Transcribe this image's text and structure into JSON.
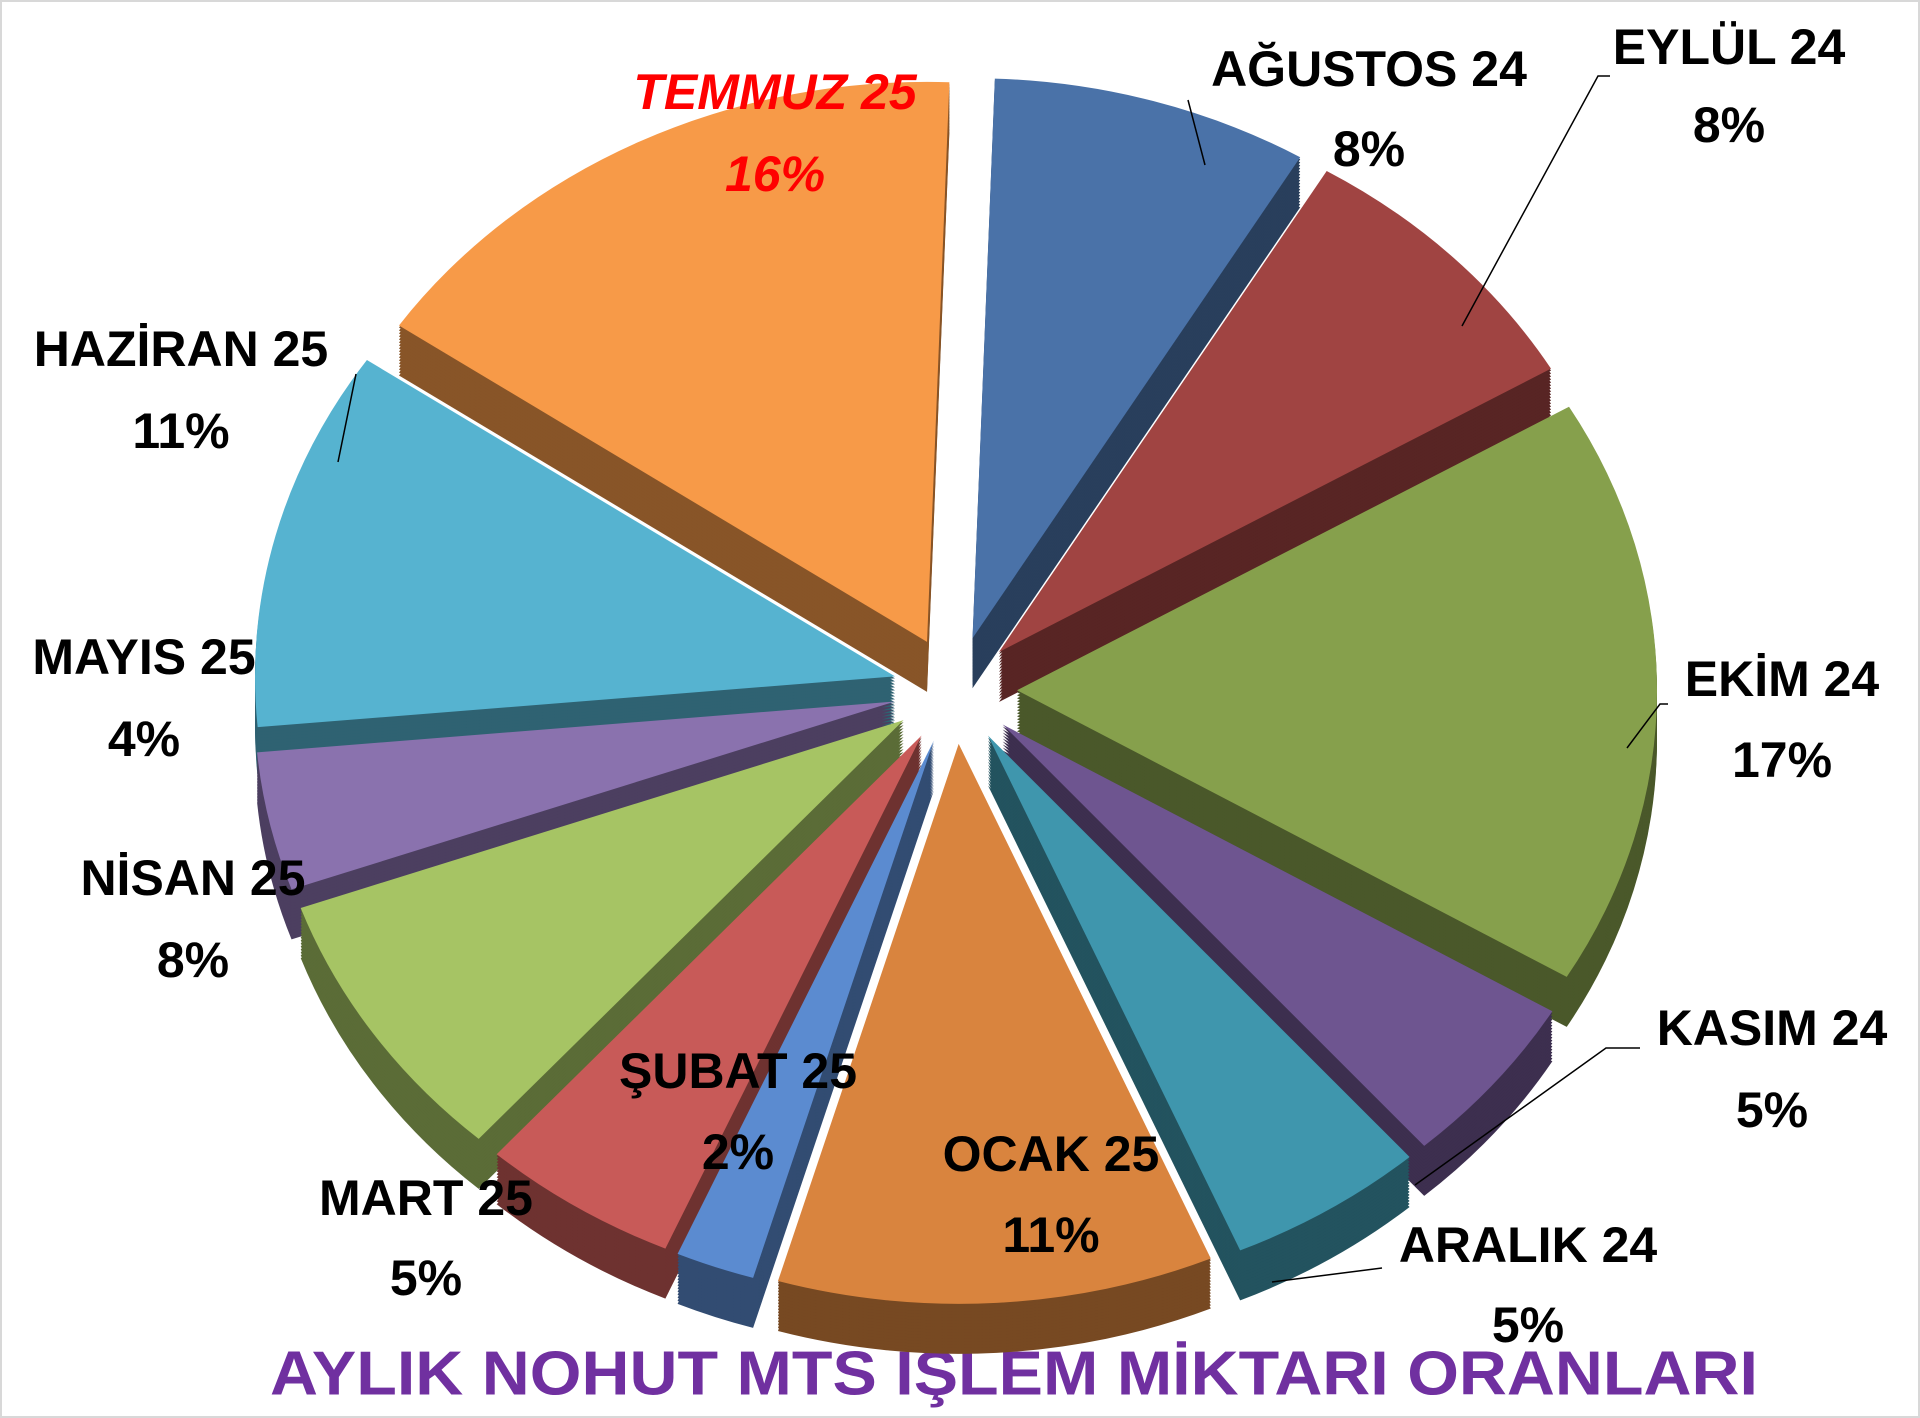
{
  "chart_data": {
    "type": "pie",
    "title": "AYLIK NOHUT MTS İŞLEM MİKTARI ORANLARI",
    "categories": [
      "AĞUSTOS 24",
      "EYLÜL 24",
      "EKİM 24",
      "KASIM 24",
      "ARALIK 24",
      "OCAK 25",
      "ŞUBAT 25",
      "MART 25",
      "NİSAN 25",
      "MAYIS 25",
      "HAZİRAN 25",
      "TEMMUZ 25"
    ],
    "values": [
      8,
      8,
      17,
      5,
      5,
      11,
      2,
      5,
      8,
      4,
      11,
      16
    ],
    "value_labels": [
      "8%",
      "8%",
      "17%",
      "5%",
      "5%",
      "11%",
      "2%",
      "5%",
      "8%",
      "4%",
      "11%",
      "16%"
    ],
    "colors": [
      "#4a72a8",
      "#a04442",
      "#86a04c",
      "#6e5590",
      "#3f96ad",
      "#d9843e",
      "#5b8bd0",
      "#c85a58",
      "#a6c464",
      "#8a72ae",
      "#56b3d0",
      "#f79a48"
    ],
    "label_colors": [
      "#000000",
      "#000000",
      "#000000",
      "#000000",
      "#000000",
      "#000000",
      "#000000",
      "#000000",
      "#000000",
      "#000000",
      "#000000",
      "#ff0000"
    ],
    "title_color": "#7030a0"
  }
}
